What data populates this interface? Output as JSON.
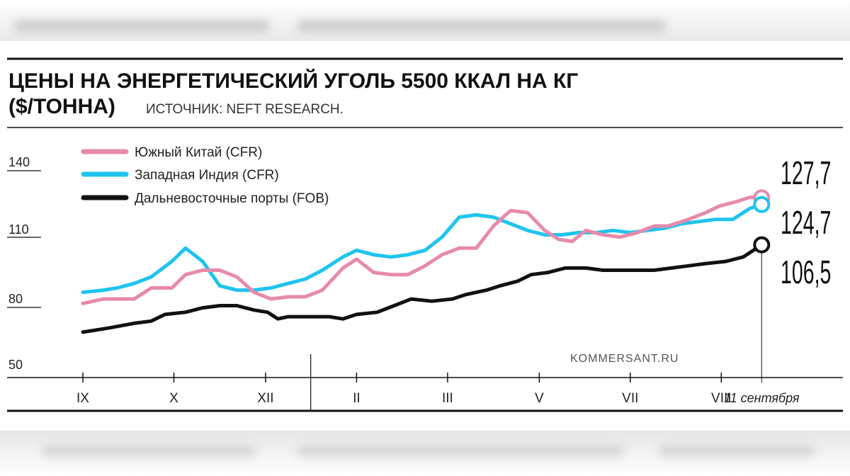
{
  "chart_data": {
    "type": "line",
    "title": "ЦЕНЫ НА ЭНЕРГЕТИЧЕСКИЙ УГОЛЬ 5500 ККАЛ НА КГ",
    "title_line2": "($/ТОННА)",
    "source": "ИСТОЧНИК: NEFT RESEARCH.",
    "watermark": "KOMMERSANT.RU",
    "ylim": [
      50,
      140
    ],
    "yticks": [
      "140",
      "110",
      "80",
      "50"
    ],
    "ytick_values": [
      140,
      110,
      80,
      50
    ],
    "xlim": [
      0,
      12.33
    ],
    "month_labels": [
      "IX",
      "X",
      "XII",
      "II",
      "III",
      "V",
      "VII",
      "VIII"
    ],
    "month_positions": [
      0,
      1.33,
      2.67,
      4,
      5.33,
      6.67,
      8,
      9.33
    ],
    "end_date_label": "11 сентября",
    "end_x": 9.92,
    "year_divider_x": 3.33,
    "grid": false,
    "legend_position": "top-left",
    "series": [
      {
        "name": "Южный Китай (CFR)",
        "color": "#e78aab",
        "end_label": "127,7",
        "x": [
          0,
          0.3,
          0.75,
          1.0,
          1.3,
          1.5,
          1.75,
          2.0,
          2.25,
          2.5,
          2.75,
          3.0,
          3.25,
          3.5,
          3.8,
          4.0,
          4.25,
          4.5,
          4.75,
          5.0,
          5.25,
          5.5,
          5.75,
          6.0,
          6.25,
          6.5,
          6.75,
          6.95,
          7.15,
          7.35,
          7.6,
          7.85,
          8.1,
          8.35,
          8.55,
          8.85,
          9.1,
          9.3,
          9.55,
          9.75,
          9.92
        ],
        "values": [
          80,
          82,
          82,
          87,
          87,
          93,
          95,
          95,
          92,
          85,
          82,
          83,
          83,
          86,
          96,
          100,
          94,
          93,
          93,
          97,
          102,
          105,
          105,
          115,
          122,
          121,
          113,
          109,
          108,
          113,
          111,
          110,
          112,
          115,
          115,
          118,
          121,
          124,
          126,
          128,
          127.7
        ]
      },
      {
        "name": "Западная Индия (CFR)",
        "color": "#1ec4ee",
        "end_label": "124,7",
        "x": [
          0,
          0.3,
          0.5,
          0.75,
          1.0,
          1.3,
          1.5,
          1.75,
          2.0,
          2.25,
          2.5,
          2.75,
          3.0,
          3.25,
          3.5,
          3.8,
          4.0,
          4.25,
          4.5,
          4.75,
          5.0,
          5.25,
          5.5,
          5.75,
          6.0,
          6.25,
          6.5,
          6.75,
          7.0,
          7.25,
          7.5,
          7.75,
          8.0,
          8.25,
          8.5,
          8.75,
          9.0,
          9.25,
          9.5,
          9.75,
          9.92
        ],
        "values": [
          85,
          86,
          87,
          89,
          92,
          99,
          105,
          99,
          88,
          86,
          86,
          87,
          89,
          91,
          95,
          101,
          104,
          102,
          101,
          102,
          104,
          110,
          119,
          120,
          119,
          116,
          113,
          111,
          111,
          112,
          112,
          113,
          112,
          113,
          114,
          116,
          117,
          118,
          118,
          123,
          124.7
        ]
      },
      {
        "name": "Дальневосточные порты (FOB)",
        "color": "#111111",
        "end_label": "106,5",
        "x": [
          0,
          0.4,
          0.75,
          1.0,
          1.2,
          1.5,
          1.75,
          2.0,
          2.25,
          2.5,
          2.7,
          2.85,
          3.0,
          3.3,
          3.6,
          3.8,
          4.0,
          4.3,
          4.55,
          4.8,
          5.1,
          5.4,
          5.6,
          5.9,
          6.1,
          6.35,
          6.55,
          6.8,
          7.05,
          7.35,
          7.6,
          7.85,
          8.1,
          8.35,
          8.6,
          8.85,
          9.1,
          9.4,
          9.65,
          9.8,
          9.92
        ],
        "values": [
          67,
          69,
          71,
          72,
          75,
          76,
          78,
          79,
          79,
          77,
          76,
          73,
          74,
          74,
          74,
          73,
          75,
          76,
          79,
          82,
          81,
          82,
          84,
          86,
          88,
          90,
          93,
          94,
          96,
          96,
          95,
          95,
          95,
          95,
          96,
          97,
          98,
          99,
          101,
          104,
          106.5
        ]
      }
    ]
  }
}
